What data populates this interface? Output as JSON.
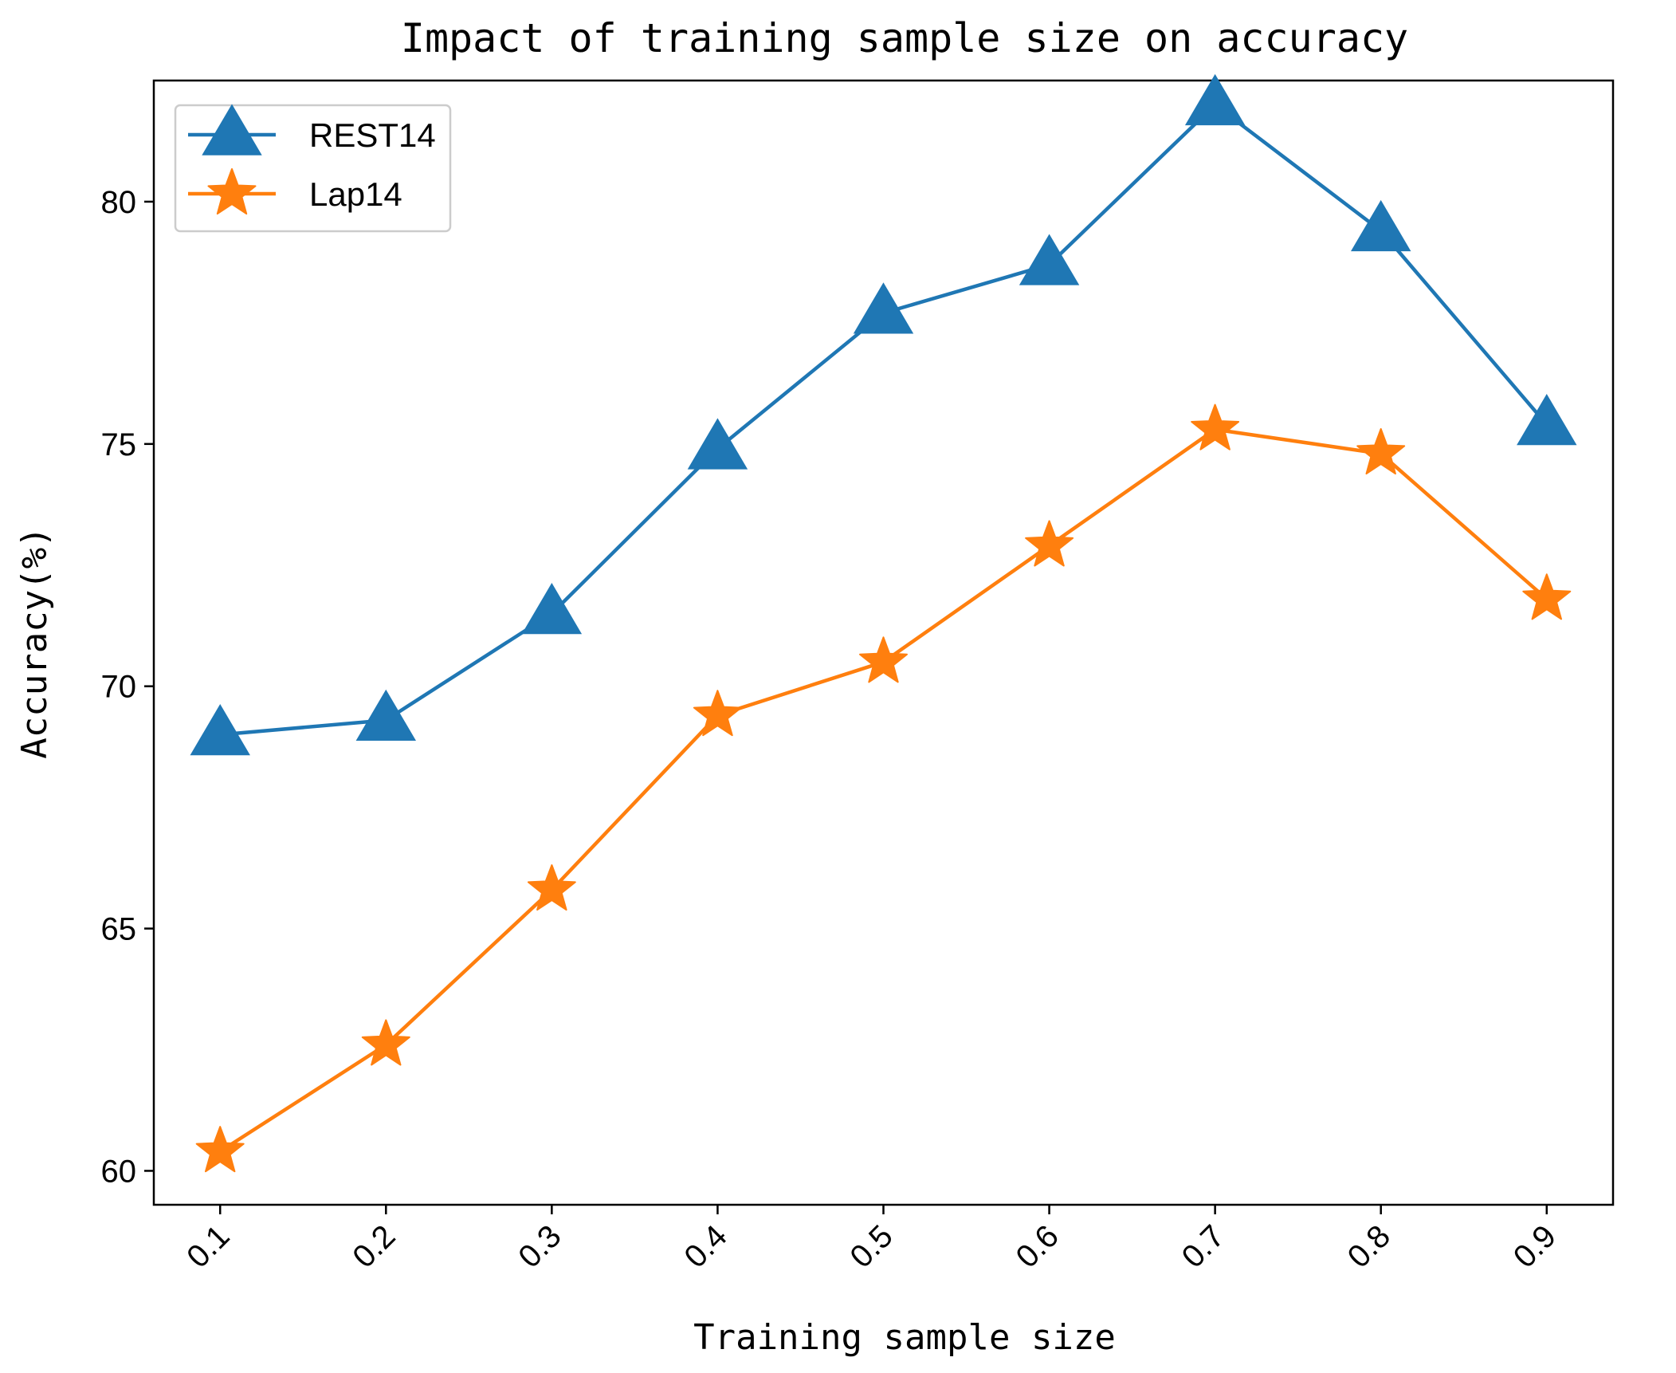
{
  "chart_data": {
    "type": "line",
    "title": "Impact of training sample size on accuracy",
    "xlabel": "Training sample size",
    "ylabel": "Accuracy(%)",
    "x": [
      0.1,
      0.2,
      0.3,
      0.4,
      0.5,
      0.6,
      0.7,
      0.8,
      0.9
    ],
    "x_tick_labels": [
      "0.1",
      "0.2",
      "0.3",
      "0.4",
      "0.5",
      "0.6",
      "0.7",
      "0.8",
      "0.9"
    ],
    "y_ticks": [
      60,
      65,
      70,
      75,
      80
    ],
    "y_tick_labels": [
      "60",
      "65",
      "70",
      "75",
      "80"
    ],
    "xlim": [
      0.06,
      0.94
    ],
    "ylim": [
      59.3,
      82.5
    ],
    "grid": false,
    "legend_position": "top-left",
    "series": [
      {
        "name": "REST14",
        "color": "#1f77b4",
        "marker": "triangle",
        "values": [
          69.0,
          69.3,
          71.5,
          74.9,
          77.7,
          78.7,
          82.0,
          79.4,
          75.4
        ]
      },
      {
        "name": "Lap14",
        "color": "#ff7f0e",
        "marker": "star",
        "values": [
          60.4,
          62.6,
          65.8,
          69.4,
          70.5,
          72.9,
          75.3,
          74.8,
          71.8
        ]
      }
    ]
  }
}
